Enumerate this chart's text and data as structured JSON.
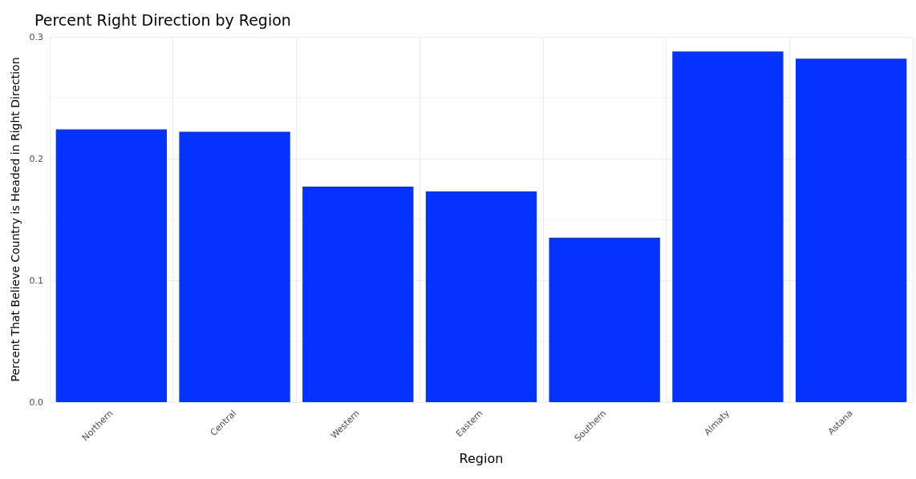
{
  "chart_data": {
    "type": "bar",
    "title": "Percent Right Direction by Region",
    "xlabel": "Region",
    "ylabel": "Percent That Believe Country is Headed in Right Direction",
    "categories": [
      "Northern",
      "Central",
      "Western",
      "Eastern",
      "Southern",
      "Almaty",
      "Astana"
    ],
    "values": [
      0.224,
      0.222,
      0.177,
      0.173,
      0.135,
      0.288,
      0.282
    ],
    "color": "#0433ff",
    "ylim": [
      0,
      0.3
    ],
    "yticks": [
      {
        "value": 0,
        "label": "0.0"
      },
      0.1,
      0.2,
      0.3
    ],
    "grid": true
  }
}
